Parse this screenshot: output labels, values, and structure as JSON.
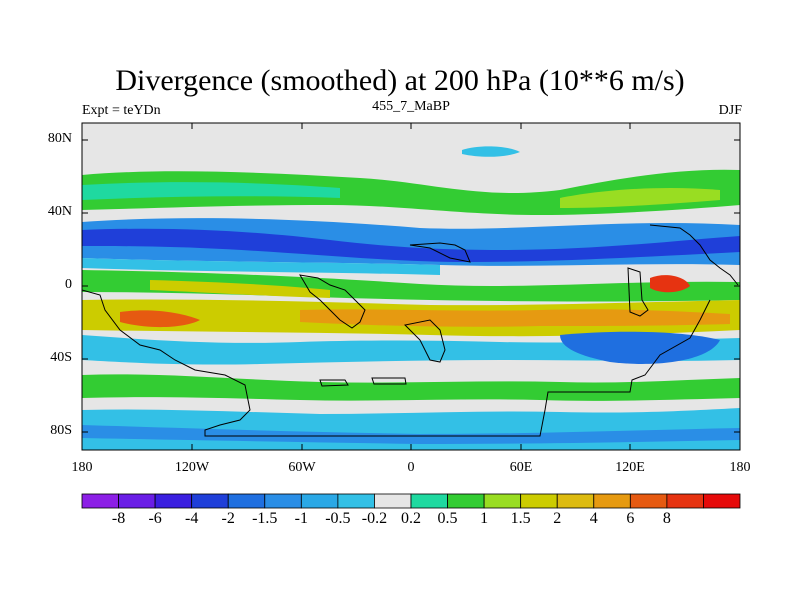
{
  "title": "Divergence (smoothed) at 200 hPa (10**6 m/s)",
  "expt_label": "Expt = teYDn",
  "model_label": "455_7_MaBP",
  "season_label": "DJF",
  "lat_ticks": [
    "80N",
    "40N",
    "0",
    "40S",
    "80S"
  ],
  "lon_ticks": [
    "180",
    "120W",
    "60W",
    "0",
    "60E",
    "120E",
    "180"
  ],
  "colorbar": {
    "colors": [
      "#8c1fe6",
      "#6a1ee6",
      "#3a1fe0",
      "#1f3fd9",
      "#1f6fe0",
      "#2a8ee6",
      "#2aa8e6",
      "#33c0e6",
      "#e6e6e6",
      "#1fd9a0",
      "#33cc33",
      "#99dd22",
      "#cccc00",
      "#ddbb11",
      "#e69a11",
      "#e65a11",
      "#e63311",
      "#e60a0a"
    ],
    "labels": [
      "-8",
      "-6",
      "-4",
      "-2",
      "-1.5",
      "-1",
      "-0.5",
      "-0.2",
      "0.2",
      "0.5",
      "1",
      "1.5",
      "2",
      "4",
      "6",
      "8"
    ]
  },
  "chart_data": {
    "type": "heatmap",
    "title": "Divergence (smoothed) at 200 hPa (10**6 m/s)",
    "level_hPa": 200,
    "units": "10**6 m/s",
    "experiment": "teYDn",
    "model": "455_7_MaBP",
    "season": "DJF",
    "lon_range": [
      -180,
      180
    ],
    "lat_range": [
      -90,
      90
    ],
    "contour_levels": [
      -8,
      -6,
      -4,
      -2,
      -1.5,
      -1,
      -0.5,
      -0.2,
      0.2,
      0.5,
      1,
      1.5,
      2,
      4,
      6,
      8
    ],
    "features": [
      {
        "region": "20N-35N band",
        "sign": "convergence",
        "approx_value": -2
      },
      {
        "region": "0-30S band",
        "sign": "divergence",
        "approx_value": 2
      },
      {
        "region": "45N-55N band",
        "sign": "divergence",
        "approx_value": 1
      },
      {
        "region": "near 140E equator",
        "sign": "divergence",
        "approx_value": 6
      }
    ]
  }
}
